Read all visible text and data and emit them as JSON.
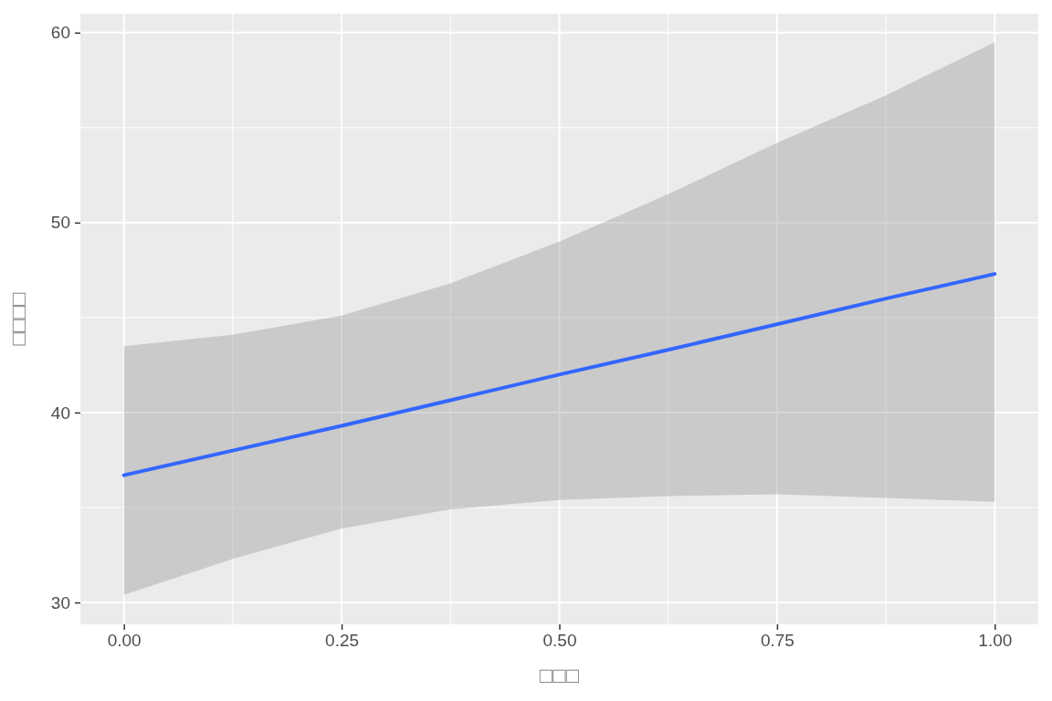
{
  "chart_data": {
    "type": "line",
    "xlabel": "□□□",
    "ylabel": "□□□□",
    "x": [
      0,
      0.125,
      0.25,
      0.375,
      0.5,
      0.625,
      0.75,
      0.875,
      1
    ],
    "series": [
      {
        "color": "#3366ff",
        "values": [
          36.7,
          38.0,
          39.3,
          40.65,
          42.0,
          43.3,
          44.65,
          46.0,
          47.3
        ],
        "lower": [
          30.4,
          32.3,
          33.9,
          34.9,
          35.4,
          35.6,
          35.7,
          35.5,
          35.3
        ],
        "upper": [
          43.5,
          44.1,
          45.1,
          46.8,
          49.0,
          51.5,
          54.2,
          56.7,
          59.5
        ]
      }
    ],
    "xlim": [
      -0.05,
      1.05
    ],
    "ylim": [
      28.85,
      61
    ],
    "xticks": [
      {
        "value": 0,
        "label": "0.00"
      },
      {
        "value": 0.25,
        "label": "0.25"
      },
      {
        "value": 0.5,
        "label": "0.50"
      },
      {
        "value": 0.75,
        "label": "0.75"
      },
      {
        "value": 1,
        "label": "1.00"
      }
    ],
    "yticks": [
      30,
      40,
      50,
      60
    ],
    "grid": true,
    "marker": "none",
    "line_style": "solid"
  }
}
